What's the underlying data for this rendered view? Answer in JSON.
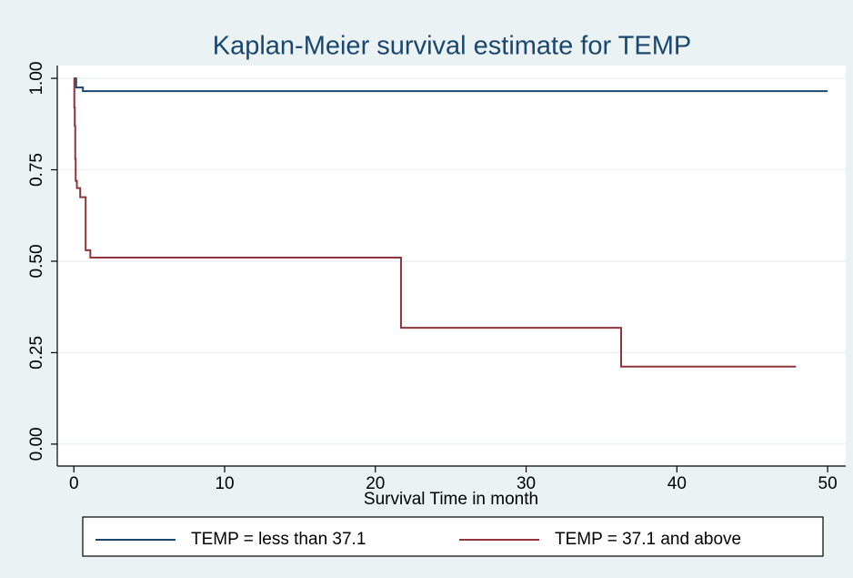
{
  "chart_data": {
    "type": "step",
    "title": "Kaplan-Meier survival estimate  for  TEMP",
    "x_label": "Survival Time in month",
    "xlim": [
      -1.1,
      51.2
    ],
    "ylim": [
      -0.06,
      1.035
    ],
    "xticks": [
      0,
      10,
      20,
      30,
      40,
      50
    ],
    "yticks": [
      {
        "value": 0,
        "label": "0.00"
      },
      {
        "value": 0.25,
        "label": "0.25"
      },
      {
        "value": 0.5,
        "label": "0.50"
      },
      {
        "value": 0.75,
        "label": "0.75"
      },
      {
        "value": 1,
        "label": "1.00"
      }
    ],
    "grid": true,
    "legend": "bottom",
    "series": [
      {
        "name": "TEMP = less than 37.1",
        "color": "#1a476f",
        "x": [
          0,
          0.15,
          0.6,
          50
        ],
        "values": [
          1,
          0.975,
          0.965,
          0.965
        ]
      },
      {
        "name": "TEMP = 37.1 and above",
        "color": "#90353b",
        "x": [
          0,
          0.03,
          0.06,
          0.09,
          0.12,
          0.2,
          0.42,
          0.78,
          1.09,
          21.7,
          36.3,
          47.9
        ],
        "values": [
          1,
          0.92,
          0.87,
          0.78,
          0.72,
          0.7,
          0.675,
          0.53,
          0.51,
          0.318,
          0.212,
          0.212
        ]
      }
    ]
  }
}
